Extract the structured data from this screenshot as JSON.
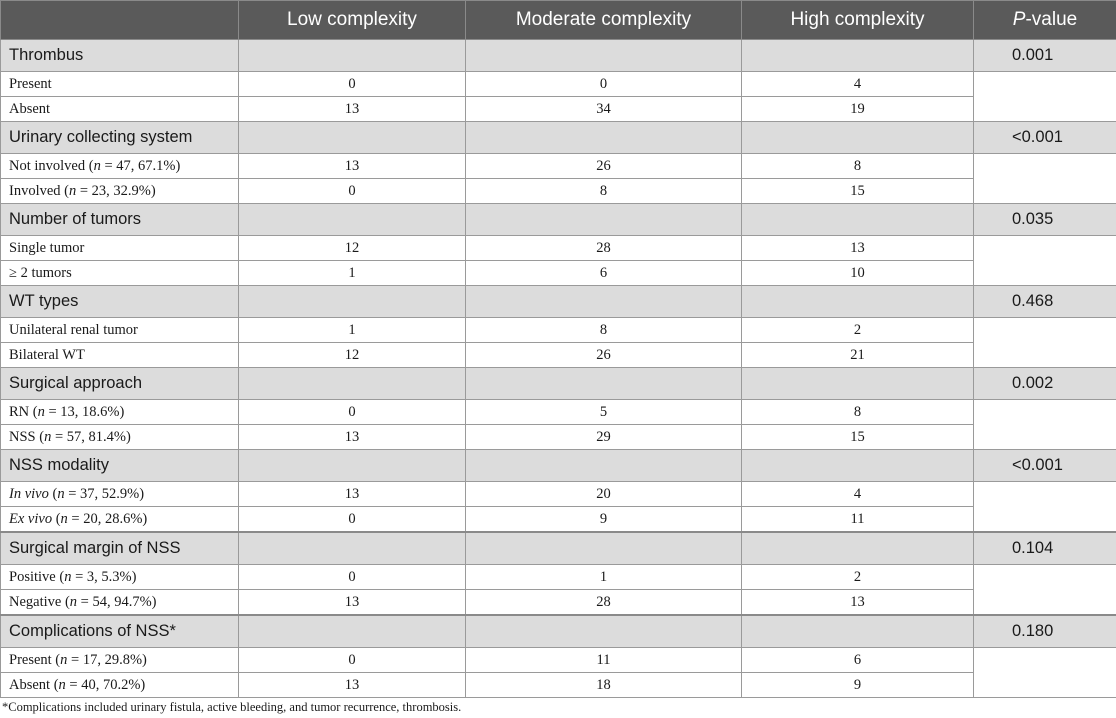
{
  "header": {
    "col0": "",
    "col1": "Low complexity",
    "col2": "Moderate complexity",
    "col3": "High complexity",
    "col4_italic": "P",
    "col4_rest": "-value"
  },
  "sections": [
    {
      "title": "Thrombus",
      "p": "0.001",
      "rows": [
        {
          "label": "Present",
          "low": "0",
          "mod": "0",
          "high": "4"
        },
        {
          "label": "Absent",
          "low": "13",
          "mod": "34",
          "high": "19"
        }
      ]
    },
    {
      "title": "Urinary collecting system",
      "p": "<0.001",
      "rows": [
        {
          "pre": "Not involved (",
          "n": "n",
          "post": " = 47, 67.1%)",
          "low": "13",
          "mod": "26",
          "high": "8"
        },
        {
          "pre": "Involved (",
          "n": "n",
          "post": " = 23, 32.9%)",
          "low": "0",
          "mod": "8",
          "high": "15"
        }
      ]
    },
    {
      "title": "Number of tumors",
      "p": "0.035",
      "rows": [
        {
          "label": "Single tumor",
          "low": "12",
          "mod": "28",
          "high": "13"
        },
        {
          "label": "≥ 2 tumors",
          "low": "1",
          "mod": "6",
          "high": "10"
        }
      ]
    },
    {
      "title": "WT types",
      "p": "0.468",
      "rows": [
        {
          "label": "Unilateral renal tumor",
          "low": "1",
          "mod": "8",
          "high": "2"
        },
        {
          "label": "Bilateral WT",
          "low": "12",
          "mod": "26",
          "high": "21"
        }
      ]
    },
    {
      "title": "Surgical approach",
      "p": "0.002",
      "rows": [
        {
          "pre": "RN (",
          "n": "n",
          "post": " = 13, 18.6%)",
          "low": "0",
          "mod": "5",
          "high": "8"
        },
        {
          "pre": "NSS (",
          "n": "n",
          "post": " = 57, 81.4%)",
          "low": "13",
          "mod": "29",
          "high": "15"
        }
      ]
    },
    {
      "title": "NSS modality",
      "p": "<0.001",
      "rows": [
        {
          "ital": "In vivo",
          "pre": " (",
          "n": "n",
          "post": " = 37, 52.9%)",
          "low": "13",
          "mod": "20",
          "high": "4"
        },
        {
          "ital": "Ex vivo",
          "pre": " (",
          "n": "n",
          "post": " = 20, 28.6%)",
          "low": "0",
          "mod": "9",
          "high": "11"
        }
      ]
    },
    {
      "title": "Surgical margin of NSS",
      "p": "0.104",
      "rows": [
        {
          "pre": "Positive (",
          "n": "n",
          "post": " = 3, 5.3%)",
          "low": "0",
          "mod": "1",
          "high": "2"
        },
        {
          "pre": "Negative (",
          "n": "n",
          "post": " = 54, 94.7%)",
          "low": "13",
          "mod": "28",
          "high": "13"
        }
      ]
    },
    {
      "title": "Complications of NSS*",
      "p": "0.180",
      "rows": [
        {
          "pre": "Present (",
          "n": "n",
          "post": " = 17, 29.8%)",
          "low": "0",
          "mod": "11",
          "high": "6"
        },
        {
          "pre": "Absent (",
          "n": "n",
          "post": " = 40, 70.2%)",
          "low": "13",
          "mod": "18",
          "high": "9"
        }
      ]
    }
  ],
  "footnote": "*Complications included urinary fistula, active bleeding, and tumor recurrence, thrombosis.",
  "colors": {
    "header_bg": "#5a5a5a",
    "section_bg": "#dcdcdc",
    "border": "#9a9a9a"
  }
}
